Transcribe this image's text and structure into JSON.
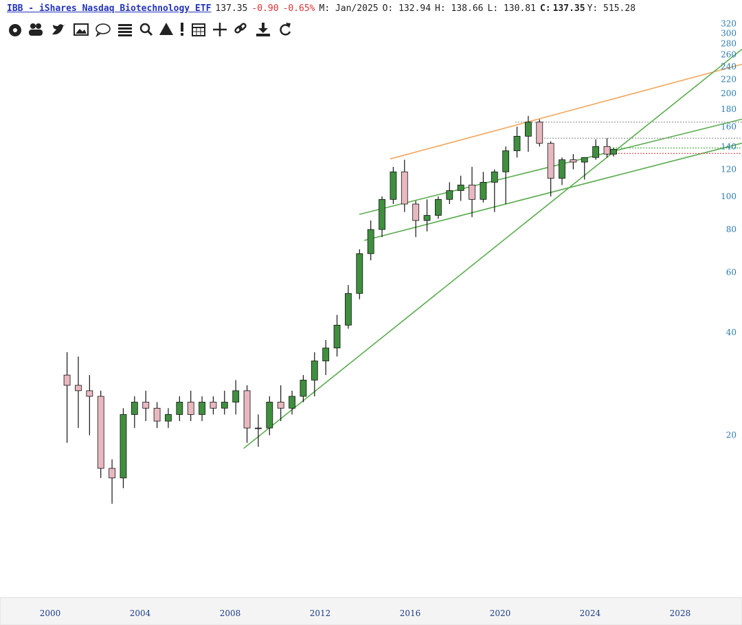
{
  "header": {
    "title": "IBB - iShares Nasdaq Biotechnology ETF",
    "last": "137.35",
    "change": "-0.90",
    "change_pct": "-0.65%",
    "period": "M: Jan/2025",
    "open": "O: 132.94",
    "high": "H: 138.66",
    "low": "L: 130.81",
    "close_label": "C:",
    "close": "137.35",
    "yield": "Y: 515.28"
  },
  "chart_data": {
    "type": "candlestick",
    "log_scale": true,
    "grid": false,
    "up_color": "#3f8f3f",
    "down_color": "#e8b8c0",
    "wick_color": "#111",
    "x": [
      2000.75,
      2001.25,
      2001.75,
      2002.25,
      2002.75,
      2003.25,
      2003.75,
      2004.25,
      2004.75,
      2005.25,
      2005.75,
      2006.25,
      2006.75,
      2007.25,
      2007.75,
      2008.25,
      2008.75,
      2009.25,
      2009.75,
      2010.25,
      2010.75,
      2011.25,
      2011.75,
      2012.25,
      2012.75,
      2013.25,
      2013.75,
      2014.25,
      2014.75,
      2015.25,
      2015.75,
      2016.25,
      2016.75,
      2017.25,
      2017.75,
      2018.25,
      2018.75,
      2019.25,
      2019.75,
      2020.25,
      2020.75,
      2021.25,
      2021.75,
      2022.25,
      2022.75,
      2023.25,
      2023.75,
      2024.25,
      2024.75,
      2025.04
    ],
    "open": [
      30,
      28,
      27,
      26,
      16,
      15,
      23,
      25,
      24,
      22,
      23,
      25,
      23,
      25,
      24,
      25,
      27,
      21,
      21,
      25,
      24,
      26,
      29,
      33,
      36,
      42,
      52,
      68,
      80,
      98,
      118,
      95,
      85,
      88,
      98,
      104,
      108,
      98,
      110,
      118,
      136,
      150,
      165,
      143,
      113,
      128,
      126,
      130,
      140,
      132.94
    ],
    "high": [
      35,
      34,
      30,
      27,
      17,
      24,
      26,
      27,
      25,
      24,
      26,
      27,
      26,
      26,
      27,
      29,
      28,
      23,
      26,
      28,
      27,
      30,
      35,
      38,
      45,
      55,
      70,
      85,
      100,
      122,
      128,
      97,
      98,
      100,
      110,
      115,
      122,
      118,
      120,
      140,
      160,
      172,
      168,
      145,
      130,
      133,
      130,
      147,
      148,
      138.66
    ],
    "low": [
      19,
      21,
      20,
      15,
      12.6,
      14,
      21,
      22,
      21,
      21,
      22,
      22,
      22,
      23,
      23,
      23,
      19,
      18.5,
      20,
      22,
      23,
      25,
      26,
      30,
      34,
      41,
      50,
      65,
      76,
      95,
      90,
      76,
      79,
      86,
      95,
      97,
      87,
      96,
      90,
      95,
      130,
      135,
      140,
      100,
      108,
      120,
      112,
      128,
      130,
      130.81
    ],
    "close": [
      28,
      27,
      26,
      16,
      15,
      23,
      25,
      24,
      22,
      23,
      25,
      23,
      25,
      24,
      25,
      27,
      21,
      21,
      25,
      24,
      26,
      29,
      33,
      36,
      42,
      52,
      68,
      80,
      98,
      118,
      95,
      85,
      88,
      98,
      104,
      108,
      98,
      110,
      118,
      136,
      150,
      165,
      143,
      113,
      128,
      126,
      130,
      140,
      133,
      137.35
    ],
    "trendlines": [
      {
        "color": "#f2a55a",
        "x": [
          2015.11,
          2030.75
        ],
        "y": [
          128.7,
          243.6
        ]
      },
      {
        "color": "#5aac4e",
        "x": [
          2008.6,
          2030.75
        ],
        "y": [
          18.3,
          269.7
        ]
      },
      {
        "color": "#5aac4e",
        "x": [
          2013.74,
          2030.75
        ],
        "y": [
          88.6,
          168.3
        ]
      },
      {
        "color": "#5aac4e",
        "x": [
          2013.96,
          2030.75
        ],
        "y": [
          74.3,
          143.2
        ]
      }
    ],
    "levels": [
      {
        "color": "#999999",
        "x": [
          2020.67,
          2030.75
        ],
        "y": 165
      },
      {
        "color": "#999999",
        "x": [
          2021.59,
          2030.75
        ],
        "y": 148
      },
      {
        "color": "#3aa83a",
        "x": [
          2024.64,
          2030.75
        ],
        "y": 138.6
      },
      {
        "color": "#e05050",
        "x": [
          2024.64,
          2030.75
        ],
        "y": 133.6
      }
    ],
    "xlim": [
      1997.77,
      2030.75
    ],
    "ylim": [
      6.7,
      330
    ],
    "xticks": [
      2000,
      2004,
      2008,
      2012,
      2016,
      2020,
      2024,
      2028
    ],
    "yticks": [
      20,
      40,
      60,
      80,
      100,
      120,
      140,
      160,
      180,
      200,
      220,
      240,
      260,
      280,
      300,
      320
    ]
  }
}
